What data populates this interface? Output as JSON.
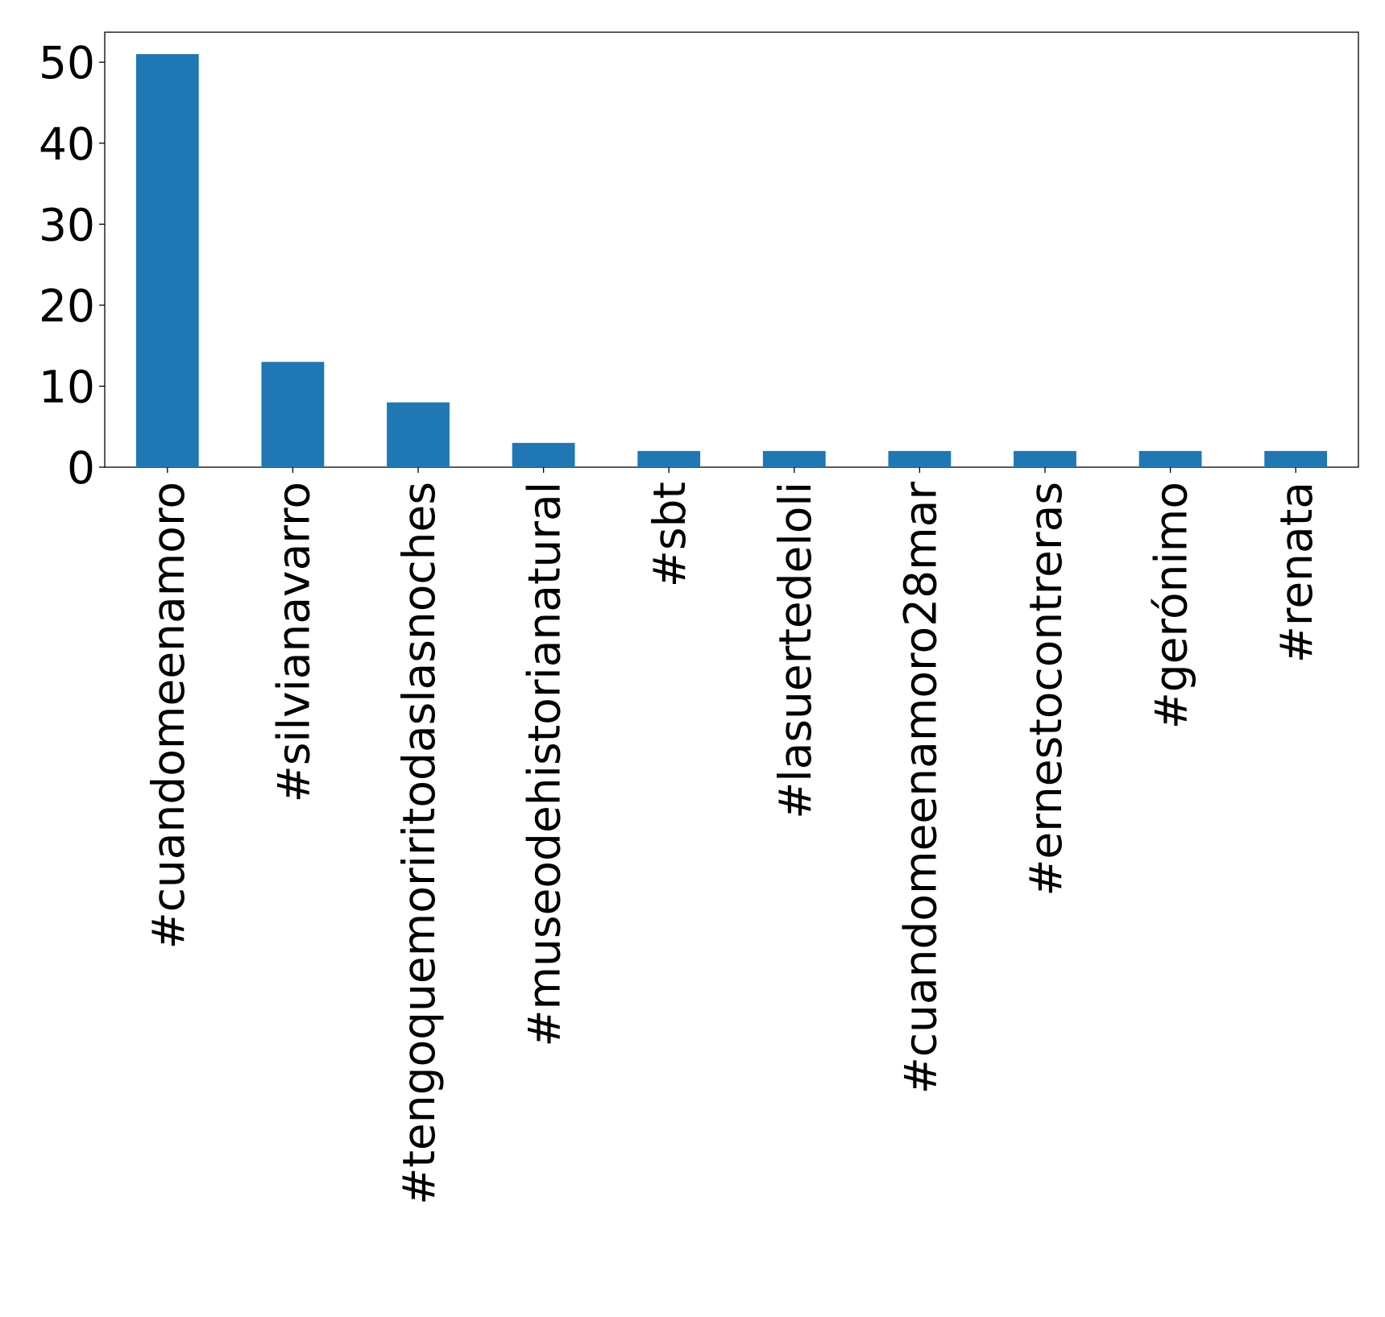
{
  "chart_data": {
    "type": "bar",
    "title": "",
    "xlabel": "",
    "ylabel": "",
    "categories": [
      "#cuandomeenamoro",
      "#silvianavarro",
      "#tengoquemoriritodaslasnoches",
      "#museodehistorianatural",
      "#sbt",
      "#lasuertedeloli",
      "#cuandomeenamoro28mar",
      "#ernestocontreras",
      "#gerónimo",
      "#renata"
    ],
    "values": [
      51,
      13,
      8,
      3,
      2,
      2,
      2,
      2,
      2,
      2
    ],
    "ylim": [
      0,
      53.7
    ],
    "yticks": [
      0,
      10,
      20,
      30,
      40,
      50
    ],
    "grid": false,
    "legend": "none",
    "colors": {
      "bar": "#1f77b4",
      "axis": "#000000",
      "background": "#ffffff"
    }
  }
}
